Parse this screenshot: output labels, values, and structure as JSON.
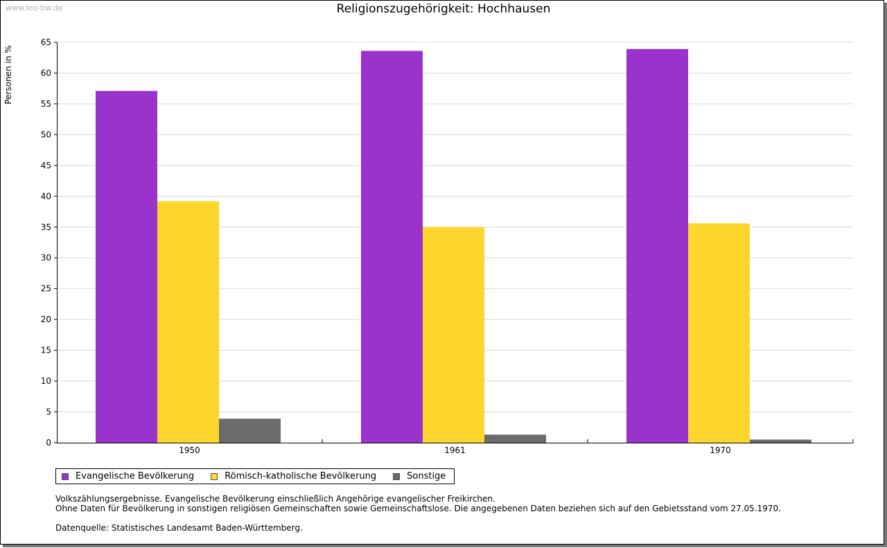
{
  "watermark": "www.leo-bw.de",
  "chart_data": {
    "type": "bar",
    "title": "Religionszugehörigkeit: Hochhausen",
    "ylabel": "Personen in %",
    "xlabel": "",
    "categories": [
      "1950",
      "1961",
      "1970"
    ],
    "ylim": [
      0,
      65
    ],
    "yticks": [
      0,
      5,
      10,
      15,
      20,
      25,
      30,
      35,
      40,
      45,
      50,
      55,
      60,
      65
    ],
    "grid": true,
    "legend_position": "bottom-left",
    "series": [
      {
        "name": "Evangelische Bevölkerung",
        "color": "#9933cc",
        "values": [
          57.1,
          63.6,
          63.9
        ]
      },
      {
        "name": "Römisch-katholische Bevölkerung",
        "color": "#fcd62d",
        "values": [
          39.2,
          35.0,
          35.6
        ]
      },
      {
        "name": "Sonstige",
        "color": "#6b6b6b",
        "values": [
          3.9,
          1.3,
          0.5
        ]
      }
    ]
  },
  "notes": {
    "line1": "Volkszählungsergebnisse. Evangelische Bevölkerung einschließlich Angehörige evangelischer Freikirchen.",
    "line2": "Ohne Daten für Bevölkerung in sonstigen religiösen Gemeinschaften sowie Gemeinschaftslose. Die angegebenen Daten beziehen sich auf den Gebietsstand vom 27.05.1970.",
    "source": "Datenquelle: Statistisches Landesamt Baden-Württemberg."
  }
}
